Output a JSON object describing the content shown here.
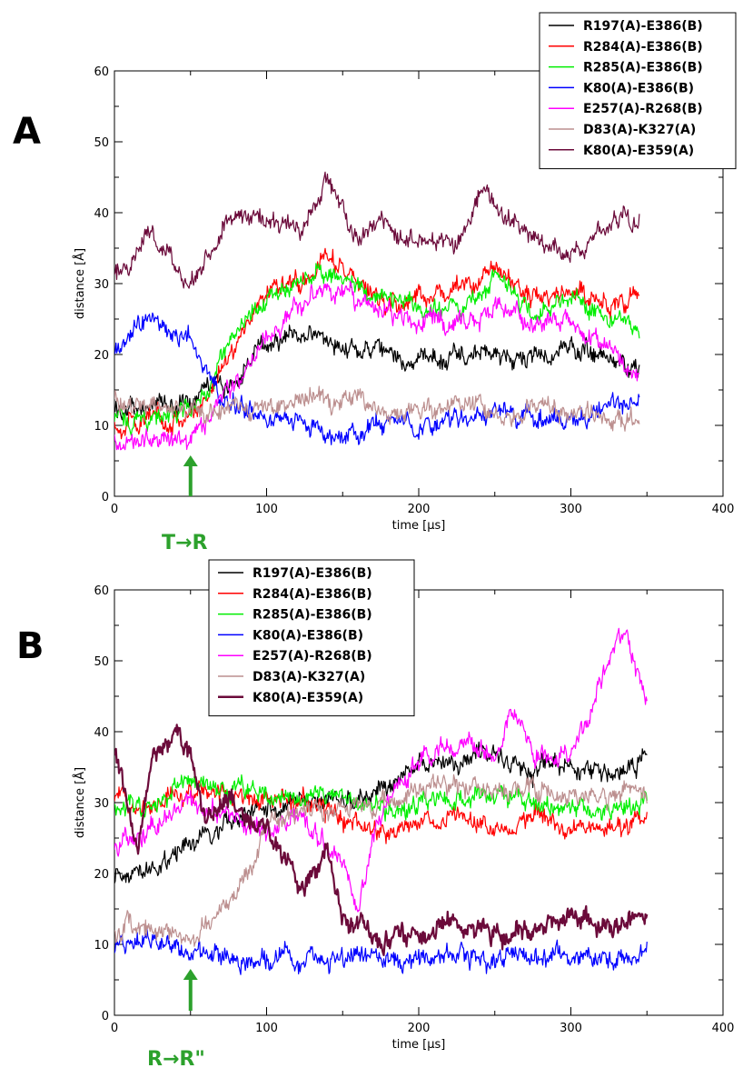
{
  "figure": {
    "panels": [
      {
        "letter": "A",
        "annotation": "T→R",
        "arrow_x": 50
      },
      {
        "letter": "B",
        "annotation": "R→R\"",
        "arrow_x": 50
      }
    ]
  },
  "chart_data": [
    {
      "type": "line",
      "xlabel": "time [µs]",
      "ylabel": "distance [Å]",
      "xlim": [
        0,
        400
      ],
      "ylim": [
        0,
        60
      ],
      "xticks": [
        0,
        100,
        200,
        300,
        400
      ],
      "yticks": [
        0,
        10,
        20,
        30,
        40,
        50,
        60
      ],
      "grid": false,
      "legend_position": "top-right",
      "series": [
        {
          "name": "R197(A)-E386(B)",
          "color": "#000000",
          "x": [
            0,
            25,
            50,
            60,
            75,
            100,
            125,
            140,
            175,
            200,
            225,
            250,
            275,
            300,
            325,
            345
          ],
          "y": [
            12,
            13,
            13,
            17,
            15,
            22,
            23,
            22,
            20,
            19,
            20,
            20,
            19,
            21,
            19,
            18
          ]
        },
        {
          "name": "R284(A)-E386(B)",
          "color": "#ff0000",
          "x": [
            0,
            25,
            50,
            60,
            75,
            100,
            125,
            140,
            175,
            200,
            225,
            250,
            275,
            300,
            325,
            345
          ],
          "y": [
            10,
            11,
            11,
            14,
            20,
            29,
            31,
            34,
            27,
            28,
            29,
            32,
            28,
            29,
            27,
            28
          ]
        },
        {
          "name": "R285(A)-E386(B)",
          "color": "#00ee00",
          "x": [
            0,
            25,
            50,
            60,
            75,
            100,
            125,
            140,
            175,
            200,
            225,
            250,
            275,
            300,
            325,
            345
          ],
          "y": [
            11,
            11,
            12,
            14,
            21,
            28,
            31,
            32,
            28,
            27,
            26,
            31,
            26,
            28,
            25,
            24
          ]
        },
        {
          "name": "K80(A)-E386(B)",
          "color": "#0000ff",
          "x": [
            0,
            15,
            25,
            40,
            50,
            60,
            75,
            100,
            125,
            150,
            175,
            200,
            225,
            250,
            275,
            300,
            325,
            345
          ],
          "y": [
            20,
            24,
            25,
            23,
            23,
            18,
            13,
            11,
            10,
            8,
            11,
            9,
            11,
            12,
            11,
            11,
            12,
            14
          ]
        },
        {
          "name": "E257(A)-R268(B)",
          "color": "#ff00ff",
          "x": [
            0,
            25,
            50,
            60,
            75,
            100,
            125,
            140,
            175,
            200,
            225,
            250,
            275,
            300,
            325,
            345
          ],
          "y": [
            8,
            8,
            8,
            10,
            15,
            22,
            27,
            30,
            26,
            25,
            24,
            27,
            25,
            24,
            20,
            17
          ]
        },
        {
          "name": "D83(A)-K327(A)",
          "color": "#bc8f8f",
          "x": [
            0,
            25,
            50,
            60,
            75,
            100,
            125,
            150,
            175,
            200,
            225,
            250,
            275,
            300,
            325,
            345
          ],
          "y": [
            14,
            13,
            12,
            12,
            12,
            12,
            14,
            14,
            12,
            12,
            13,
            12,
            12,
            12,
            11,
            11
          ]
        },
        {
          "name": "K80(A)-E359(A)",
          "color": "#6b0a3a",
          "x": [
            0,
            20,
            35,
            50,
            60,
            75,
            100,
            125,
            140,
            160,
            175,
            200,
            225,
            240,
            260,
            275,
            300,
            325,
            345
          ],
          "y": [
            31,
            37,
            34,
            30,
            33,
            40,
            38,
            38,
            45,
            36,
            39,
            36,
            36,
            43,
            39,
            37,
            34,
            38,
            39
          ]
        }
      ]
    },
    {
      "type": "line",
      "xlabel": "time [µs]",
      "ylabel": "distance [Å]",
      "xlim": [
        0,
        400
      ],
      "ylim": [
        0,
        60
      ],
      "xticks": [
        0,
        100,
        200,
        300,
        400
      ],
      "yticks": [
        0,
        10,
        20,
        30,
        40,
        50,
        60
      ],
      "grid": false,
      "legend_position": "top-left",
      "series": [
        {
          "name": "R197(A)-E386(B)",
          "color": "#000000",
          "x": [
            0,
            25,
            50,
            75,
            100,
            125,
            150,
            175,
            200,
            225,
            250,
            275,
            300,
            325,
            350
          ],
          "y": [
            20,
            21,
            24,
            27,
            29,
            30,
            30,
            32,
            35,
            36,
            36,
            35,
            35,
            34,
            36
          ]
        },
        {
          "name": "R284(A)-E386(B)",
          "color": "#ff0000",
          "x": [
            0,
            25,
            50,
            75,
            100,
            125,
            150,
            175,
            200,
            225,
            250,
            275,
            300,
            325,
            350
          ],
          "y": [
            31,
            30,
            32,
            31,
            30,
            30,
            28,
            25,
            27,
            28,
            27,
            28,
            26,
            26,
            27
          ]
        },
        {
          "name": "R285(A)-E386(B)",
          "color": "#00ee00",
          "x": [
            0,
            25,
            50,
            75,
            100,
            125,
            150,
            175,
            200,
            225,
            250,
            275,
            300,
            325,
            350
          ],
          "y": [
            30,
            29,
            33,
            32,
            31,
            31,
            30,
            29,
            30,
            31,
            31,
            30,
            29,
            29,
            30
          ]
        },
        {
          "name": "K80(A)-E386(B)",
          "color": "#0000ff",
          "x": [
            0,
            25,
            50,
            75,
            100,
            125,
            150,
            175,
            200,
            225,
            250,
            275,
            300,
            325,
            350
          ],
          "y": [
            10,
            11,
            8,
            8,
            8,
            8,
            8,
            8,
            8,
            8,
            8,
            8,
            9,
            8,
            8
          ]
        },
        {
          "name": "E257(A)-R268(B)",
          "color": "#ff00ff",
          "x": [
            0,
            25,
            50,
            75,
            100,
            125,
            150,
            160,
            175,
            200,
            225,
            250,
            260,
            275,
            300,
            325,
            335,
            350
          ],
          "y": [
            24,
            27,
            30,
            28,
            26,
            28,
            20,
            15,
            28,
            37,
            38,
            37,
            43,
            37,
            37,
            50,
            55,
            45
          ]
        },
        {
          "name": "D83(A)-K327(A)",
          "color": "#bc8f8f",
          "x": [
            0,
            25,
            50,
            75,
            90,
            100,
            125,
            150,
            175,
            200,
            225,
            250,
            275,
            300,
            325,
            350
          ],
          "y": [
            12,
            12,
            11,
            16,
            21,
            27,
            29,
            29,
            30,
            32,
            33,
            32,
            32,
            31,
            31,
            31
          ]
        },
        {
          "name": "K80(A)-E359(A)",
          "color": "#6b0a3a",
          "x": [
            0,
            15,
            25,
            40,
            50,
            60,
            75,
            100,
            125,
            140,
            150,
            165,
            175,
            200,
            225,
            250,
            275,
            300,
            325,
            350
          ],
          "y": [
            38,
            22,
            36,
            40,
            37,
            27,
            30,
            26,
            18,
            23,
            14,
            12,
            10,
            12,
            13,
            11,
            12,
            14,
            12,
            15
          ]
        }
      ]
    }
  ]
}
